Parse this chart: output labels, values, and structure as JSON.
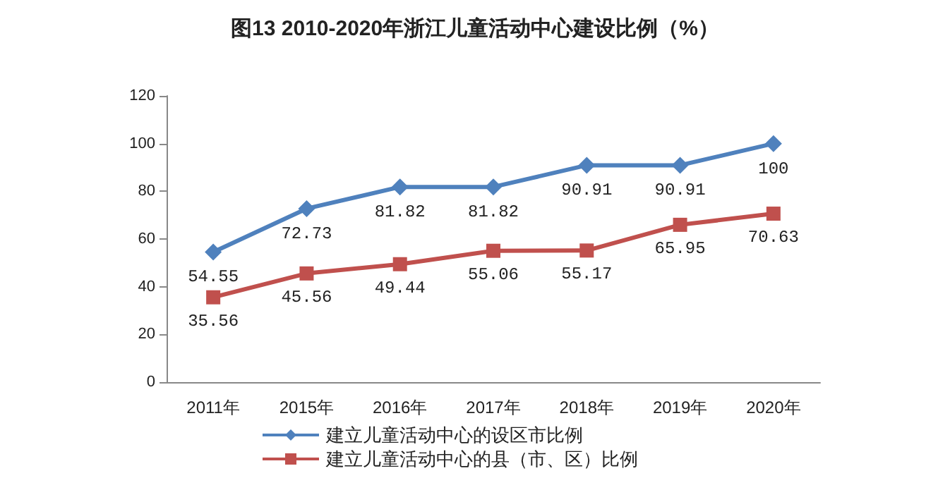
{
  "chart_data": {
    "type": "line",
    "title": "图13 2010-2020年浙江儿童活动中心建设比例（%）",
    "categories": [
      "2011年",
      "2015年",
      "2016年",
      "2017年",
      "2018年",
      "2019年",
      "2020年"
    ],
    "series": [
      {
        "name": "建立儿童活动中心的设区市比例",
        "color": "#4f81bd",
        "marker": "diamond",
        "values": [
          54.55,
          72.73,
          81.82,
          81.82,
          90.91,
          90.91,
          100
        ]
      },
      {
        "name": "建立儿童活动中心的县（市、区）比例",
        "color": "#c0504d",
        "marker": "square",
        "values": [
          35.56,
          45.56,
          49.44,
          55.06,
          55.17,
          65.95,
          70.63
        ]
      }
    ],
    "ylim": [
      0,
      120
    ],
    "yticks": [
      0,
      20,
      40,
      60,
      80,
      100,
      120
    ],
    "grid": false,
    "legend": "bottom",
    "data_labels": true
  }
}
